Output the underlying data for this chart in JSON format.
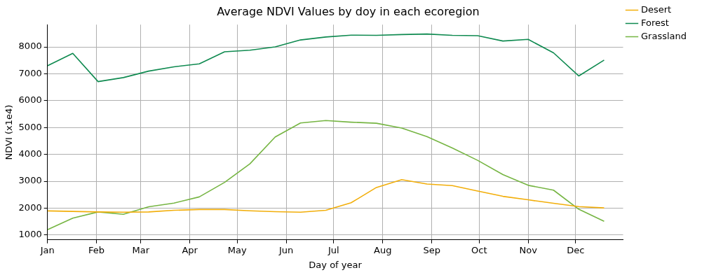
{
  "chart_data": {
    "type": "line",
    "title": "Average NDVI Values by doy in each ecoregion",
    "xlabel": "Day of year",
    "ylabel": "NDVI (x1e4)",
    "x": [
      "--01-01",
      "--01-17",
      "--02-02",
      "--02-18",
      "--03-06",
      "--03-22",
      "--04-07",
      "--04-23",
      "--05-09",
      "--05-25",
      "--06-10",
      "--06-26",
      "--07-12",
      "--07-28",
      "--08-13",
      "--08-29",
      "--09-14",
      "--09-30",
      "--10-16",
      "--11-01",
      "--11-17",
      "--12-03",
      "--12-19"
    ],
    "series": [
      {
        "name": "Desert",
        "color": "#f2ae0a",
        "values": [
          1900,
          1880,
          1860,
          1850,
          1860,
          1920,
          1950,
          1950,
          1900,
          1870,
          1850,
          1920,
          2200,
          2770,
          3060,
          2900,
          2840,
          2640,
          2440,
          2310,
          2180,
          2060,
          2010
        ]
      },
      {
        "name": "Forest",
        "color": "#0f8a50",
        "values": [
          7300,
          7760,
          6710,
          6860,
          7100,
          7260,
          7370,
          7820,
          7880,
          8000,
          8260,
          8370,
          8440,
          8430,
          8460,
          8480,
          8430,
          8420,
          8220,
          8280,
          7780,
          6920,
          7510
        ]
      },
      {
        "name": "Grassland",
        "color": "#76b543",
        "values": [
          1200,
          1630,
          1860,
          1770,
          2050,
          2190,
          2420,
          2960,
          3650,
          4650,
          5170,
          5260,
          5200,
          5160,
          4980,
          4660,
          4240,
          3780,
          3250,
          2850,
          2670,
          1960,
          1510
        ]
      }
    ],
    "xlim": [
      "--01-01",
      "--12-31"
    ],
    "xticks": [
      {
        "value": "--01-01",
        "label": "Jan"
      },
      {
        "value": "--02-01",
        "label": "Feb"
      },
      {
        "value": "--03-01",
        "label": "Mar"
      },
      {
        "value": "--04-01",
        "label": "Apr"
      },
      {
        "value": "--05-01",
        "label": "May"
      },
      {
        "value": "--06-01",
        "label": "Jun"
      },
      {
        "value": "--07-01",
        "label": "Jul"
      },
      {
        "value": "--08-01",
        "label": "Aug"
      },
      {
        "value": "--09-01",
        "label": "Sep"
      },
      {
        "value": "--10-01",
        "label": "Oct"
      },
      {
        "value": "--11-01",
        "label": "Nov"
      },
      {
        "value": "--12-01",
        "label": "Dec"
      }
    ],
    "ylim": [
      820,
      8830
    ],
    "yticks": [
      1000,
      2000,
      3000,
      4000,
      5000,
      6000,
      7000,
      8000
    ],
    "grid": true,
    "legend": "top right",
    "marker": "none",
    "line_style": "solid"
  }
}
